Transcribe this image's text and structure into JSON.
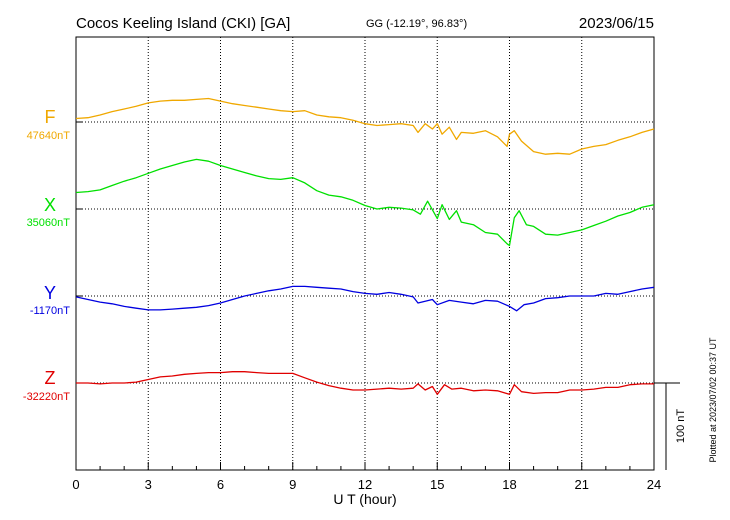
{
  "header": {
    "station": "Cocos Keeling Island (CKI)  [GA]",
    "coords": "GG (-12.19°,  96.83°)",
    "date": "2023/06/15"
  },
  "plotted_note": "Plotted at 2023/07/02 00:37 UT",
  "chart_data": {
    "type": "line",
    "xlabel": "U T (hour)",
    "xlim": [
      0,
      24
    ],
    "xticks": [
      "0",
      "3",
      "6",
      "9",
      "12",
      "15",
      "18",
      "21",
      "24"
    ],
    "scale_label": "100 nT",
    "scale_nT": 100,
    "series": [
      {
        "name": "F",
        "baseline_label": "47640nT",
        "baseline_nT": 47640,
        "color": "#f0a800",
        "x": [
          0,
          0.5,
          1,
          1.5,
          2,
          2.5,
          3,
          3.5,
          4,
          4.5,
          5,
          5.5,
          6,
          6.5,
          7,
          7.5,
          8,
          8.5,
          9,
          9.5,
          10,
          10.5,
          11,
          11.5,
          12,
          12.5,
          13,
          13.5,
          14,
          14.2,
          14.5,
          14.8,
          15,
          15.2,
          15.5,
          15.8,
          16,
          16.5,
          17,
          17.5,
          17.9,
          18,
          18.2,
          18.5,
          19,
          19.5,
          20,
          20.5,
          21,
          21.5,
          22,
          22.5,
          23,
          23.5,
          24
        ],
        "y": [
          47644,
          47645,
          47648,
          47652,
          47655,
          47658,
          47662,
          47664,
          47665,
          47665,
          47666,
          47667,
          47664,
          47661,
          47659,
          47657,
          47655,
          47653,
          47652,
          47653,
          47648,
          47646,
          47645,
          47642,
          47638,
          47636,
          47637,
          47638,
          47636,
          47628,
          47638,
          47632,
          47638,
          47626,
          47634,
          47620,
          47628,
          47627,
          47630,
          47623,
          47612,
          47626,
          47630,
          47618,
          47606,
          47603,
          47604,
          47603,
          47609,
          47612,
          47614,
          47619,
          47623,
          47628,
          47632
        ]
      },
      {
        "name": "X",
        "baseline_label": "35060nT",
        "baseline_nT": 35060,
        "color": "#00e000",
        "x": [
          0,
          0.5,
          1,
          1.5,
          2,
          2.5,
          3,
          3.5,
          4,
          4.5,
          5,
          5.5,
          6,
          6.5,
          7,
          7.5,
          8,
          8.5,
          9,
          9.5,
          10,
          10.5,
          11,
          11.5,
          12,
          12.5,
          13,
          13.5,
          14,
          14.3,
          14.6,
          15,
          15.2,
          15.5,
          15.8,
          16,
          16.5,
          17,
          17.5,
          17.9,
          18,
          18.2,
          18.4,
          18.7,
          19,
          19.5,
          20,
          20.5,
          21,
          21.5,
          22,
          22.5,
          23,
          23.5,
          24
        ],
        "y": [
          35079,
          35080,
          35082,
          35087,
          35092,
          35096,
          35101,
          35106,
          35110,
          35114,
          35117,
          35115,
          35110,
          35106,
          35102,
          35098,
          35095,
          35094,
          35096,
          35090,
          35081,
          35076,
          35074,
          35070,
          35064,
          35060,
          35062,
          35061,
          35059,
          35054,
          35069,
          35049,
          35065,
          35048,
          35058,
          35045,
          35042,
          35033,
          35031,
          35020,
          35018,
          35050,
          35058,
          35042,
          35040,
          35031,
          35030,
          35033,
          35036,
          35041,
          35046,
          35052,
          35056,
          35062,
          35065
        ]
      },
      {
        "name": "Y",
        "baseline_label": "-1170nT",
        "baseline_nT": -1170,
        "color": "#0000e0",
        "x": [
          0,
          0.5,
          1,
          1.5,
          2,
          2.5,
          3,
          3.5,
          4,
          4.5,
          5,
          5.5,
          6,
          6.5,
          7,
          7.5,
          8,
          8.5,
          9,
          9.5,
          10,
          10.5,
          11,
          11.5,
          12,
          12.5,
          13,
          13.5,
          14,
          14.2,
          14.5,
          14.8,
          15,
          15.5,
          16,
          16.5,
          17,
          17.5,
          18,
          18.3,
          18.6,
          19,
          19.5,
          20,
          20.5,
          21,
          21.5,
          22,
          22.5,
          23,
          23.5,
          24
        ],
        "y": [
          -1171,
          -1174,
          -1177,
          -1179,
          -1182,
          -1184,
          -1186,
          -1186,
          -1185,
          -1184,
          -1183,
          -1181,
          -1178,
          -1174,
          -1170,
          -1167,
          -1164,
          -1162,
          -1159,
          -1159,
          -1160,
          -1161,
          -1162,
          -1165,
          -1167,
          -1168,
          -1166,
          -1168,
          -1171,
          -1178,
          -1176,
          -1174,
          -1180,
          -1175,
          -1177,
          -1179,
          -1175,
          -1176,
          -1182,
          -1187,
          -1180,
          -1178,
          -1173,
          -1172,
          -1170,
          -1170,
          -1170,
          -1167,
          -1168,
          -1165,
          -1162,
          -1160
        ]
      },
      {
        "name": "Z",
        "baseline_label": "-32220nT",
        "baseline_nT": -32220,
        "color": "#e00000",
        "x": [
          0,
          0.5,
          1,
          1.5,
          2,
          2.5,
          3,
          3.5,
          4,
          4.5,
          5,
          5.5,
          6,
          6.5,
          7,
          7.5,
          8,
          8.5,
          9,
          9.5,
          10,
          10.5,
          11,
          11.5,
          12,
          12.5,
          13,
          13.5,
          14,
          14.2,
          14.5,
          14.8,
          15,
          15.3,
          15.6,
          16,
          16.5,
          17,
          17.5,
          18,
          18.2,
          18.5,
          19,
          19.5,
          20,
          20.5,
          21,
          21.5,
          22,
          22.5,
          23,
          23.5,
          24
        ],
        "y": [
          -32220,
          -32220,
          -32221,
          -32220,
          -32220,
          -32219,
          -32216,
          -32213,
          -32212,
          -32210,
          -32209,
          -32208,
          -32208,
          -32207,
          -32207,
          -32208,
          -32209,
          -32209,
          -32209,
          -32214,
          -32219,
          -32223,
          -32226,
          -32228,
          -32228,
          -32227,
          -32226,
          -32227,
          -32226,
          -32221,
          -32228,
          -32224,
          -32233,
          -32222,
          -32227,
          -32226,
          -32229,
          -32228,
          -32229,
          -32233,
          -32222,
          -32230,
          -32232,
          -32231,
          -32231,
          -32228,
          -32228,
          -32227,
          -32225,
          -32225,
          -32222,
          -32221,
          -32221
        ]
      }
    ]
  }
}
